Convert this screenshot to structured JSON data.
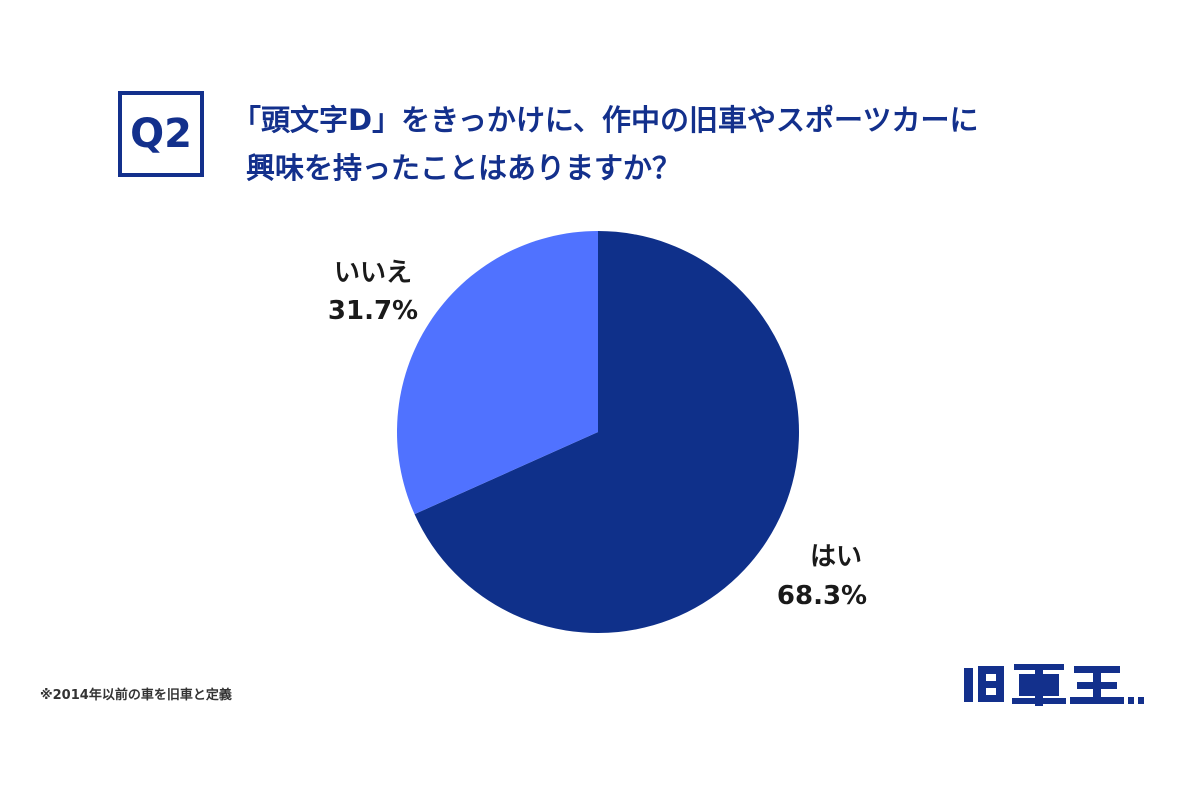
{
  "question": {
    "number": "Q2",
    "line1": "「頭文字D」をきっかけに、作中の旧車やスポーツカーに",
    "line2": "興味を持ったことはありますか？"
  },
  "chart_data": {
    "type": "pie",
    "slices": [
      {
        "label": "はい",
        "value": 68.3,
        "value_text": "68.3%",
        "color": "#0f308a"
      },
      {
        "label": "いいえ",
        "value": 31.7,
        "value_text": "31.7%",
        "color": "#5072ff"
      }
    ],
    "start_angle_deg": 0,
    "direction": "clockwise"
  },
  "footnote": "※2014年以前の車を旧車と定義",
  "logo": {
    "text": "旧車王",
    "color": "#13308c"
  }
}
